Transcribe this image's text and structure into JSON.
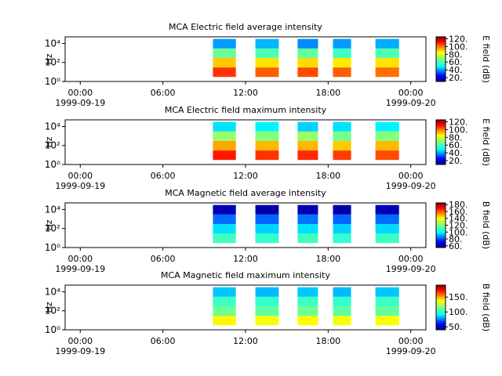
{
  "chart_data": [
    {
      "type": "spectrogram",
      "title": "MCA  Electric field average intensity",
      "ylabel": "Hz",
      "log_y": true,
      "xlim": [
        "1999-09-18T22:54",
        "1999-09-20T01:06"
      ],
      "xticks": [
        {
          "value": "1999-09-19T00:00",
          "label": [
            "00:00",
            "1999-09-19"
          ]
        },
        {
          "value": "1999-09-19T06:00",
          "label": [
            "06:00"
          ]
        },
        {
          "value": "1999-09-19T12:00",
          "label": [
            "12:00"
          ]
        },
        {
          "value": "1999-09-19T18:00",
          "label": [
            "18:00"
          ]
        },
        {
          "value": "1999-09-20T00:00",
          "label": [
            "00:00",
            "1999-09-20"
          ]
        }
      ],
      "ylim": [
        1,
        50000
      ],
      "yticks": [
        {
          "value": 1,
          "label": "10⁰"
        },
        {
          "value": 100,
          "label": "10²"
        },
        {
          "value": 10000,
          "label": "10⁴"
        }
      ],
      "y_edges": [
        3,
        30,
        300,
        3000,
        30000
      ],
      "segments": [
        [
          "1999-09-19T09:38",
          "1999-09-19T11:18"
        ],
        [
          "1999-09-19T12:43",
          "1999-09-19T14:25"
        ],
        [
          "1999-09-19T15:47",
          "1999-09-19T17:16"
        ],
        [
          "1999-09-19T18:21",
          "1999-09-19T19:40"
        ],
        [
          "1999-09-19T21:26",
          "1999-09-19T23:09"
        ]
      ],
      "z": [
        [
          105,
          88,
          65,
          42
        ],
        [
          100,
          85,
          62,
          45
        ],
        [
          102,
          86,
          64,
          40
        ],
        [
          100,
          84,
          60,
          42
        ],
        [
          98,
          85,
          62,
          44
        ]
      ],
      "colorbar_label": "E field (dB)",
      "clim": [
        10,
        125
      ],
      "cticks": [
        {
          "value": 20,
          "label": "20."
        },
        {
          "value": 40,
          "label": "40."
        },
        {
          "value": 60,
          "label": "60."
        },
        {
          "value": 80,
          "label": "80."
        },
        {
          "value": 100,
          "label": "100."
        },
        {
          "value": 120,
          "label": "120."
        }
      ]
    },
    {
      "type": "spectrogram",
      "title": "MCA  Electric field maximum intensity",
      "ylabel": "Hz",
      "log_y": true,
      "xlim": [
        "1999-09-18T22:54",
        "1999-09-20T01:06"
      ],
      "xticks": [
        {
          "value": "1999-09-19T00:00",
          "label": [
            "00:00",
            "1999-09-19"
          ]
        },
        {
          "value": "1999-09-19T06:00",
          "label": [
            "06:00"
          ]
        },
        {
          "value": "1999-09-19T12:00",
          "label": [
            "12:00"
          ]
        },
        {
          "value": "1999-09-19T18:00",
          "label": [
            "18:00"
          ]
        },
        {
          "value": "1999-09-20T00:00",
          "label": [
            "00:00",
            "1999-09-20"
          ]
        }
      ],
      "ylim": [
        1,
        50000
      ],
      "yticks": [
        {
          "value": 1,
          "label": "10⁰"
        },
        {
          "value": 100,
          "label": "10²"
        },
        {
          "value": 10000,
          "label": "10⁴"
        }
      ],
      "y_edges": [
        3,
        30,
        300,
        3000,
        30000
      ],
      "segments": [
        [
          "1999-09-19T09:38",
          "1999-09-19T11:18"
        ],
        [
          "1999-09-19T12:43",
          "1999-09-19T14:25"
        ],
        [
          "1999-09-19T15:47",
          "1999-09-19T17:16"
        ],
        [
          "1999-09-19T18:21",
          "1999-09-19T19:40"
        ],
        [
          "1999-09-19T21:26",
          "1999-09-19T23:09"
        ]
      ],
      "z": [
        [
          108,
          92,
          70,
          50
        ],
        [
          105,
          90,
          68,
          52
        ],
        [
          106,
          90,
          70,
          48
        ],
        [
          104,
          88,
          66,
          50
        ],
        [
          102,
          90,
          68,
          52
        ]
      ],
      "colorbar_label": "E field (dB)",
      "clim": [
        10,
        125
      ],
      "cticks": [
        {
          "value": 20,
          "label": "20."
        },
        {
          "value": 40,
          "label": "40."
        },
        {
          "value": 60,
          "label": "60."
        },
        {
          "value": 80,
          "label": "80."
        },
        {
          "value": 100,
          "label": "100."
        },
        {
          "value": 120,
          "label": "120."
        }
      ]
    },
    {
      "type": "spectrogram",
      "title": "MCA  Magnetic field average intensity",
      "ylabel": "Hz",
      "log_y": true,
      "xlim": [
        "1999-09-18T22:54",
        "1999-09-20T01:06"
      ],
      "xticks": [
        {
          "value": "1999-09-19T00:00",
          "label": [
            "00:00",
            "1999-09-19"
          ]
        },
        {
          "value": "1999-09-19T06:00",
          "label": [
            "06:00"
          ]
        },
        {
          "value": "1999-09-19T12:00",
          "label": [
            "12:00"
          ]
        },
        {
          "value": "1999-09-19T18:00",
          "label": [
            "18:00"
          ]
        },
        {
          "value": "1999-09-20T00:00",
          "label": [
            "00:00",
            "1999-09-20"
          ]
        }
      ],
      "ylim": [
        1,
        50000
      ],
      "yticks": [
        {
          "value": 1,
          "label": "10⁰"
        },
        {
          "value": 100,
          "label": "10²"
        },
        {
          "value": 10000,
          "label": "10⁴"
        }
      ],
      "y_edges": [
        3,
        30,
        300,
        3000,
        30000
      ],
      "segments": [
        [
          "1999-09-19T09:38",
          "1999-09-19T11:18"
        ],
        [
          "1999-09-19T12:43",
          "1999-09-19T14:25"
        ],
        [
          "1999-09-19T15:47",
          "1999-09-19T17:16"
        ],
        [
          "1999-09-19T18:21",
          "1999-09-19T19:40"
        ],
        [
          "1999-09-19T21:26",
          "1999-09-19T23:09"
        ]
      ],
      "z": [
        [
          112,
          100,
          85,
          62
        ],
        [
          110,
          98,
          84,
          60
        ],
        [
          112,
          100,
          86,
          62
        ],
        [
          110,
          98,
          84,
          60
        ],
        [
          111,
          99,
          85,
          62
        ]
      ],
      "colorbar_label": "B field (dB)",
      "clim": [
        55,
        185
      ],
      "cticks": [
        {
          "value": 60,
          "label": "60."
        },
        {
          "value": 80,
          "label": "80."
        },
        {
          "value": 100,
          "label": "100."
        },
        {
          "value": 120,
          "label": "120."
        },
        {
          "value": 140,
          "label": "140."
        },
        {
          "value": 160,
          "label": "160."
        },
        {
          "value": 180,
          "label": "180."
        }
      ]
    },
    {
      "type": "spectrogram",
      "title": "MCA  Magnetic field maximum intensity",
      "ylabel": "Hz",
      "log_y": true,
      "xlim": [
        "1999-09-18T22:54",
        "1999-09-20T01:06"
      ],
      "xticks": [
        {
          "value": "1999-09-19T00:00",
          "label": [
            "00:00",
            "1999-09-19"
          ]
        },
        {
          "value": "1999-09-19T06:00",
          "label": [
            "06:00"
          ]
        },
        {
          "value": "1999-09-19T12:00",
          "label": [
            "12:00"
          ]
        },
        {
          "value": "1999-09-19T18:00",
          "label": [
            "18:00"
          ]
        },
        {
          "value": "1999-09-20T00:00",
          "label": [
            "00:00",
            "1999-09-20"
          ]
        }
      ],
      "ylim": [
        1,
        50000
      ],
      "yticks": [
        {
          "value": 1,
          "label": "10⁰"
        },
        {
          "value": 100,
          "label": "10²"
        },
        {
          "value": 10000,
          "label": "10⁴"
        }
      ],
      "y_edges": [
        3,
        30,
        300,
        3000,
        30000
      ],
      "segments": [
        [
          "1999-09-19T09:38",
          "1999-09-19T11:18"
        ],
        [
          "1999-09-19T12:43",
          "1999-09-19T14:25"
        ],
        [
          "1999-09-19T15:47",
          "1999-09-19T17:16"
        ],
        [
          "1999-09-19T18:21",
          "1999-09-19T19:40"
        ],
        [
          "1999-09-19T21:26",
          "1999-09-19T23:09"
        ]
      ],
      "z": [
        [
          135,
          112,
          105,
          88
        ],
        [
          132,
          110,
          104,
          86
        ],
        [
          134,
          112,
          105,
          88
        ],
        [
          132,
          110,
          104,
          86
        ],
        [
          133,
          111,
          105,
          88
        ]
      ],
      "colorbar_label": "B field (dB)",
      "clim": [
        40,
        190
      ],
      "cticks": [
        {
          "value": 50,
          "label": "50."
        },
        {
          "value": 100,
          "label": "100."
        },
        {
          "value": 150,
          "label": "150."
        }
      ]
    }
  ]
}
